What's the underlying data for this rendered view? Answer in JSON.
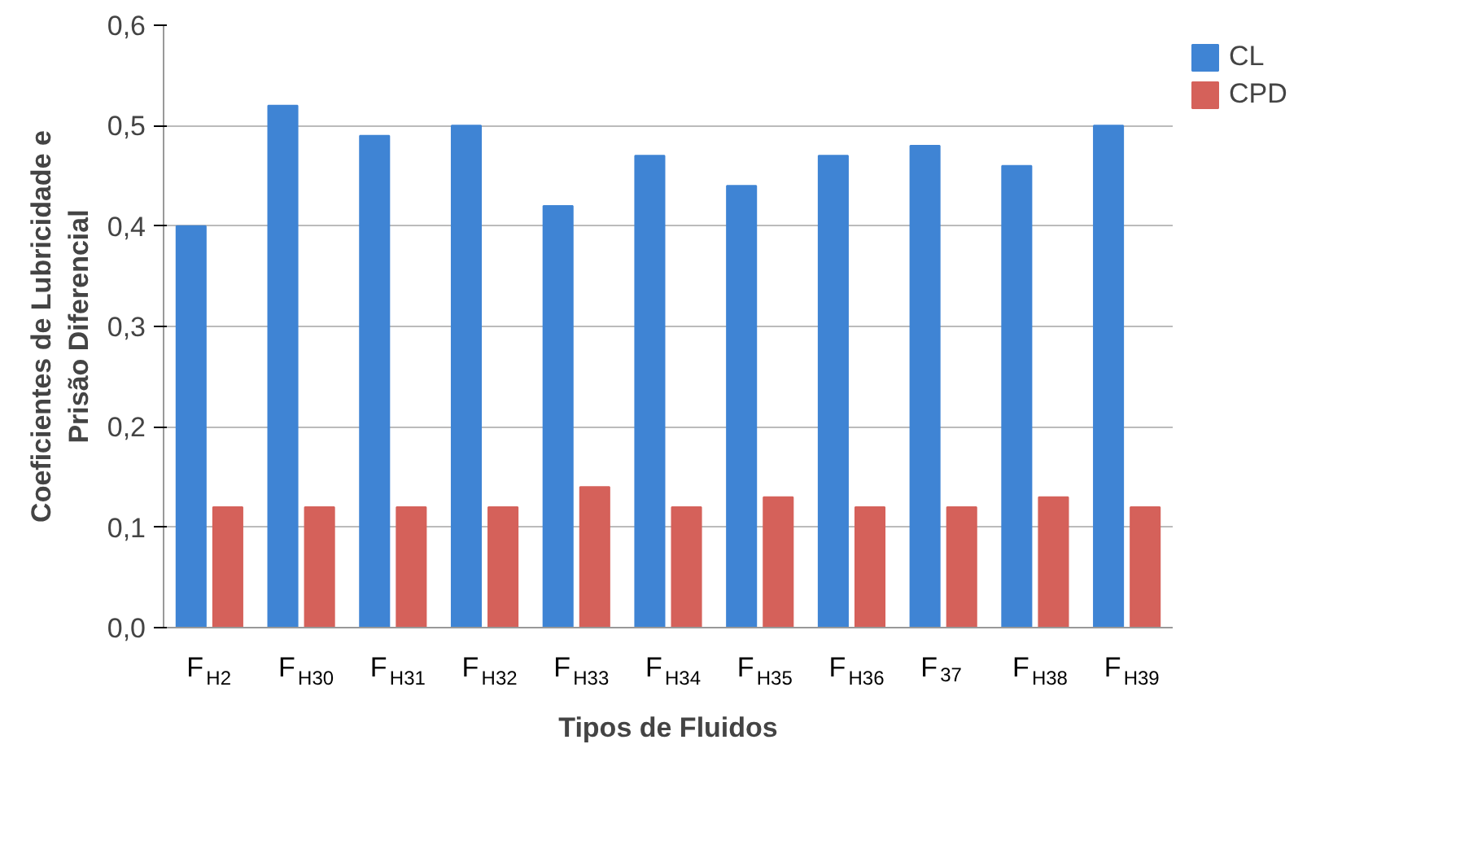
{
  "chart_data": {
    "type": "bar",
    "xlabel": "Tipos de Fluidos",
    "ylabel": "Coeficientes de Lubricidade e\nPrisão Diferencial",
    "categories": [
      "F$_{H2}$",
      "F$_{H30}$",
      "F$_{H31}$",
      "F$_{H32}$",
      "F$_{H33}$",
      "F$_{H34}$",
      "F$_{H35}$",
      "F$_{H36}$",
      "F$_{37}$",
      "F$_{H38}$",
      "F$_{H39}$"
    ],
    "series": [
      {
        "name": "CL",
        "color": "#3f84d4",
        "values": [
          0.4,
          0.52,
          0.49,
          0.5,
          0.42,
          0.47,
          0.44,
          0.47,
          0.48,
          0.46,
          0.5
        ]
      },
      {
        "name": "CPD",
        "color": "#d5615a",
        "values": [
          0.12,
          0.12,
          0.12,
          0.12,
          0.14,
          0.12,
          0.13,
          0.12,
          0.12,
          0.13,
          0.12
        ]
      }
    ],
    "ylim": [
      0,
      0.6
    ],
    "yticks": [
      {
        "value": 0,
        "label": "0,0"
      },
      {
        "value": 0.1,
        "label": "0,1"
      },
      {
        "value": 0.2,
        "label": "0,2"
      },
      {
        "value": 0.3,
        "label": "0,3"
      },
      {
        "value": 0.4,
        "label": "0,4"
      },
      {
        "value": 0.5,
        "label": "0,5"
      },
      {
        "value": 0.6,
        "label": "0,6"
      }
    ],
    "grid": "y",
    "legend": "top right"
  }
}
